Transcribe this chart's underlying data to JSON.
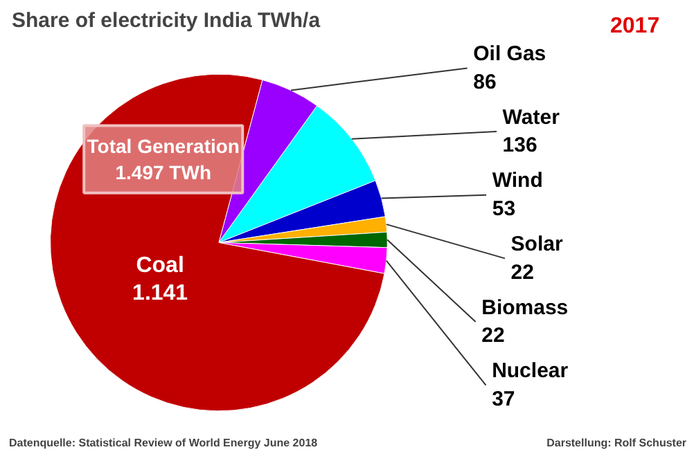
{
  "chart_data": {
    "type": "pie",
    "title": "Share of electricity   India   TWh/a",
    "subtitle": "2017",
    "categories": [
      "Oil Gas",
      "Water",
      "Wind",
      "Solar",
      "Biomass",
      "Nuclear",
      "Coal"
    ],
    "values": [
      86,
      136,
      53,
      22,
      22,
      37,
      1141
    ],
    "value_labels": [
      "86",
      "136",
      "53",
      "22",
      "22",
      "37",
      "1.141"
    ],
    "colors": [
      "#9900ff",
      "#00ffff",
      "#0000cc",
      "#ffb000",
      "#006600",
      "#ff00ff",
      "#c00000"
    ],
    "annotations": [
      "Total Generation\n1.497 TWh",
      "Datenquelle: Statistical Review  of World Energy  June 2018",
      "Darstellung: Rolf Schuster"
    ]
  }
}
